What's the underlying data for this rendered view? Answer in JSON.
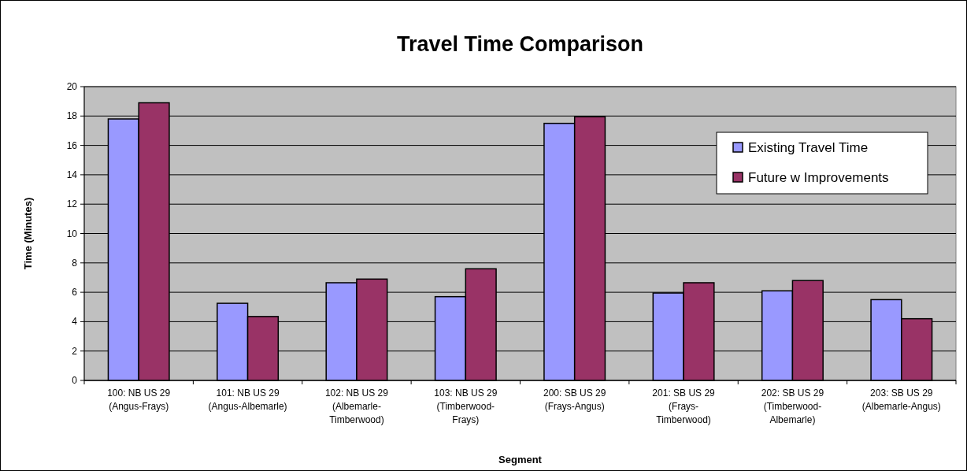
{
  "chart_data": {
    "type": "bar",
    "title": "Travel Time Comparison",
    "xlabel": "Segment",
    "ylabel": "Time (Minutes)",
    "categories": [
      "100: NB US 29\n(Angus-Frays)",
      "101: NB US 29\n(Angus-Albemarle)",
      "102: NB US 29\n(Albemarle-\nTimberwood)",
      "103: NB US 29\n(Timberwood-\nFrays)",
      "200: SB US 29\n(Frays-Angus)",
      "201: SB US 29\n(Frays-\nTimberwood)",
      "202: SB US 29\n(Timberwood-\nAlbemarle)",
      "203: SB US 29\n(Albemarle-Angus)"
    ],
    "series": [
      {
        "name": "Existing Travel Time",
        "color": "#9999ff",
        "values": [
          17.8,
          5.25,
          6.65,
          5.7,
          17.5,
          5.95,
          6.1,
          5.5
        ]
      },
      {
        "name": "Future w Improvements",
        "color": "#993366",
        "values": [
          18.9,
          4.35,
          6.9,
          7.6,
          17.95,
          6.65,
          6.8,
          4.2
        ]
      }
    ],
    "ylim": [
      0,
      20
    ],
    "yticks": [
      0,
      2,
      4,
      6,
      8,
      10,
      12,
      14,
      16,
      18,
      20
    ],
    "grid": "y",
    "legend": "top right"
  }
}
